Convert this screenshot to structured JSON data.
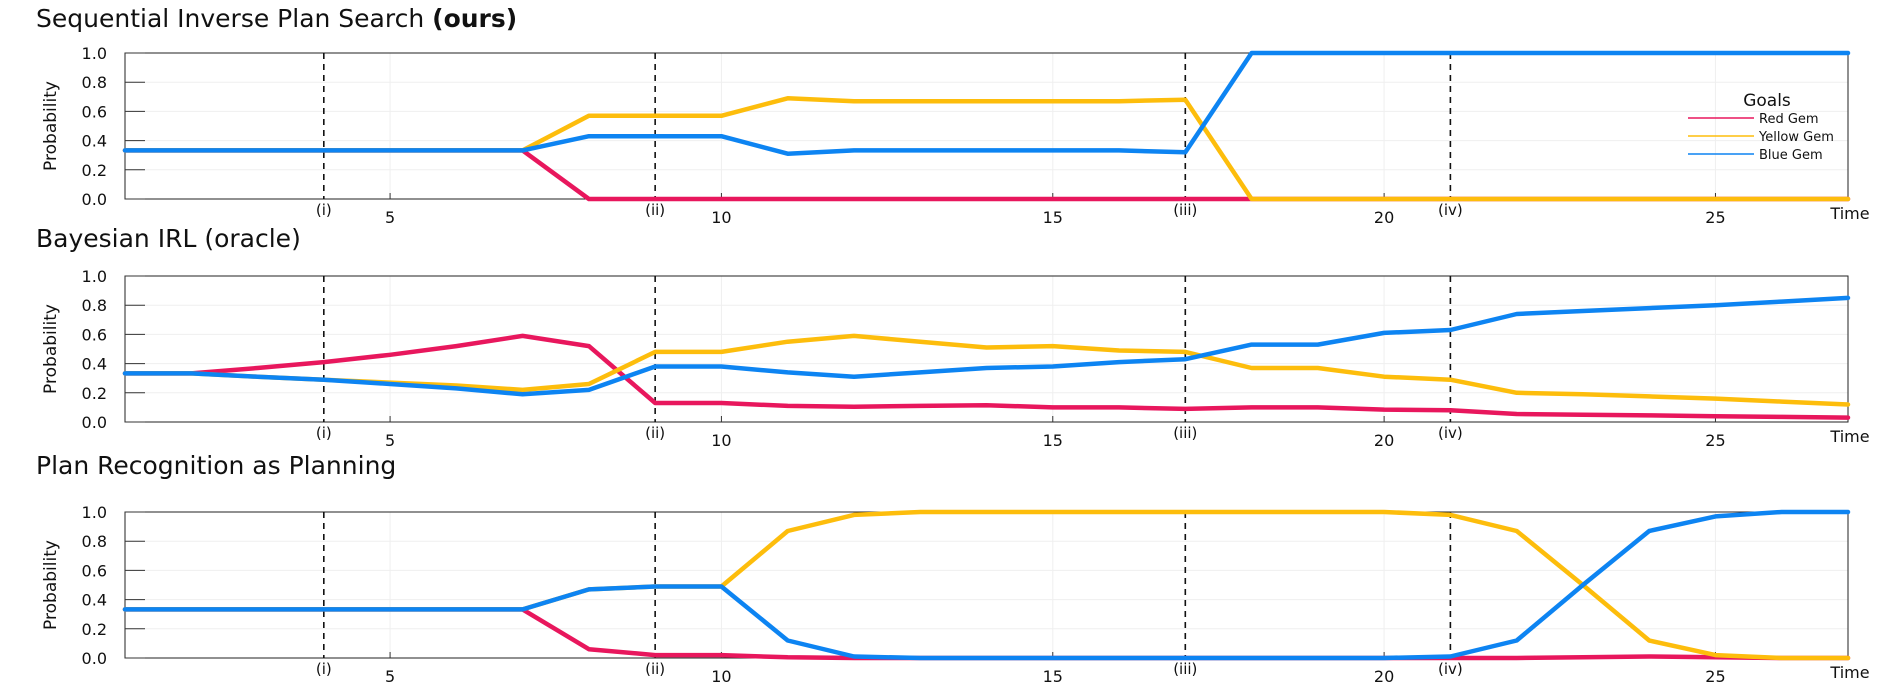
{
  "chart_data": [
    {
      "type": "line",
      "title": "Sequential Inverse Plan Search",
      "title_bold": "(ours)",
      "ylabel": "Probability",
      "xlabel": "Time",
      "ylim": [
        0,
        1
      ],
      "xlim": [
        1,
        27
      ],
      "yticks": [
        "0.0",
        "0.2",
        "0.4",
        "0.6",
        "0.8",
        "1.0"
      ],
      "xticks": [
        5,
        10,
        15,
        20,
        25
      ],
      "markers": [
        {
          "x": 4,
          "label": "(i)"
        },
        {
          "x": 9,
          "label": "(ii)"
        },
        {
          "x": 17,
          "label": "(iii)"
        },
        {
          "x": 21,
          "label": "(iv)"
        }
      ],
      "legend": {
        "title": "Goals",
        "position": "top-right"
      },
      "grid": true,
      "x": [
        1,
        2,
        3,
        4,
        5,
        6,
        7,
        8,
        9,
        10,
        11,
        12,
        13,
        14,
        15,
        16,
        17,
        18,
        19,
        20,
        21,
        22,
        23,
        24,
        25,
        26,
        27
      ],
      "series": [
        {
          "name": "Red Gem",
          "color": "#e8175d",
          "values": [
            0.333,
            0.333,
            0.333,
            0.333,
            0.333,
            0.333,
            0.333,
            0,
            0,
            0,
            0,
            0,
            0,
            0,
            0,
            0,
            0,
            0,
            0,
            0,
            0,
            0,
            0,
            0,
            0,
            0,
            0
          ]
        },
        {
          "name": "Yellow Gem",
          "color": "#fdbd0c",
          "values": [
            0.333,
            0.333,
            0.333,
            0.333,
            0.333,
            0.333,
            0.333,
            0.57,
            0.57,
            0.57,
            0.69,
            0.67,
            0.67,
            0.67,
            0.67,
            0.67,
            0.68,
            0,
            0,
            0,
            0,
            0,
            0,
            0,
            0,
            0,
            0
          ]
        },
        {
          "name": "Blue Gem",
          "color": "#0d84f2",
          "values": [
            0.333,
            0.333,
            0.333,
            0.333,
            0.333,
            0.333,
            0.333,
            0.43,
            0.43,
            0.43,
            0.31,
            0.333,
            0.333,
            0.333,
            0.333,
            0.333,
            0.32,
            1.0,
            1.0,
            1.0,
            1.0,
            1.0,
            1.0,
            1.0,
            1.0,
            1.0,
            1.0
          ]
        }
      ]
    },
    {
      "type": "line",
      "title": "Bayesian IRL (oracle)",
      "ylabel": "Probability",
      "xlabel": "Time",
      "ylim": [
        0,
        1
      ],
      "xlim": [
        1,
        27
      ],
      "yticks": [
        "0.0",
        "0.2",
        "0.4",
        "0.6",
        "0.8",
        "1.0"
      ],
      "xticks": [
        5,
        10,
        15,
        20,
        25
      ],
      "markers": [
        {
          "x": 4,
          "label": "(i)"
        },
        {
          "x": 9,
          "label": "(ii)"
        },
        {
          "x": 17,
          "label": "(iii)"
        },
        {
          "x": 21,
          "label": "(iv)"
        }
      ],
      "grid": true,
      "x": [
        1,
        2,
        3,
        4,
        5,
        6,
        7,
        8,
        9,
        10,
        11,
        12,
        13,
        14,
        15,
        16,
        17,
        18,
        19,
        20,
        21,
        22,
        23,
        24,
        25,
        26,
        27
      ],
      "series": [
        {
          "name": "Red Gem",
          "color": "#e8175d",
          "values": [
            0.333,
            0.333,
            0.37,
            0.41,
            0.46,
            0.52,
            0.59,
            0.52,
            0.13,
            0.13,
            0.11,
            0.105,
            0.11,
            0.115,
            0.1,
            0.1,
            0.09,
            0.1,
            0.1,
            0.085,
            0.08,
            0.055,
            0.05,
            0.045,
            0.04,
            0.035,
            0.03
          ]
        },
        {
          "name": "Yellow Gem",
          "color": "#fdbd0c",
          "values": [
            0.333,
            0.333,
            0.31,
            0.29,
            0.27,
            0.25,
            0.22,
            0.26,
            0.48,
            0.48,
            0.55,
            0.59,
            0.55,
            0.51,
            0.52,
            0.49,
            0.48,
            0.37,
            0.37,
            0.31,
            0.29,
            0.2,
            0.19,
            0.175,
            0.16,
            0.14,
            0.12
          ]
        },
        {
          "name": "Blue Gem",
          "color": "#0d84f2",
          "values": [
            0.333,
            0.333,
            0.31,
            0.29,
            0.26,
            0.23,
            0.19,
            0.22,
            0.38,
            0.38,
            0.34,
            0.31,
            0.34,
            0.37,
            0.38,
            0.41,
            0.43,
            0.53,
            0.53,
            0.61,
            0.63,
            0.74,
            0.76,
            0.78,
            0.8,
            0.825,
            0.85
          ]
        }
      ]
    },
    {
      "type": "line",
      "title": "Plan Recognition as Planning",
      "ylabel": "Probability",
      "xlabel": "Time",
      "ylim": [
        0,
        1
      ],
      "xlim": [
        1,
        27
      ],
      "yticks": [
        "0.0",
        "0.2",
        "0.4",
        "0.6",
        "0.8",
        "1.0"
      ],
      "xticks": [
        5,
        10,
        15,
        20,
        25
      ],
      "markers": [
        {
          "x": 4,
          "label": "(i)"
        },
        {
          "x": 9,
          "label": "(ii)"
        },
        {
          "x": 17,
          "label": "(iii)"
        },
        {
          "x": 21,
          "label": "(iv)"
        }
      ],
      "grid": true,
      "x": [
        1,
        2,
        3,
        4,
        5,
        6,
        7,
        8,
        9,
        10,
        11,
        12,
        13,
        14,
        15,
        16,
        17,
        18,
        19,
        20,
        21,
        22,
        23,
        24,
        25,
        26,
        27
      ],
      "series": [
        {
          "name": "Red Gem",
          "color": "#e8175d",
          "values": [
            0.333,
            0.333,
            0.333,
            0.333,
            0.333,
            0.333,
            0.333,
            0.06,
            0.02,
            0.02,
            0.005,
            0,
            0,
            0,
            0,
            0,
            0,
            0,
            0,
            0,
            0,
            0,
            0.005,
            0.01,
            0.005,
            0,
            0
          ]
        },
        {
          "name": "Yellow Gem",
          "color": "#fdbd0c",
          "values": [
            0.333,
            0.333,
            0.333,
            0.333,
            0.333,
            0.333,
            0.333,
            0.47,
            0.49,
            0.49,
            0.87,
            0.98,
            1.0,
            1.0,
            1.0,
            1.0,
            1.0,
            1.0,
            1.0,
            1.0,
            0.98,
            0.87,
            0.5,
            0.12,
            0.02,
            0,
            0
          ]
        },
        {
          "name": "Blue Gem",
          "color": "#0d84f2",
          "values": [
            0.333,
            0.333,
            0.333,
            0.333,
            0.333,
            0.333,
            0.333,
            0.47,
            0.49,
            0.49,
            0.12,
            0.01,
            0,
            0,
            0,
            0,
            0,
            0,
            0,
            0,
            0.01,
            0.12,
            0.5,
            0.87,
            0.97,
            1.0,
            1.0
          ]
        }
      ]
    }
  ]
}
